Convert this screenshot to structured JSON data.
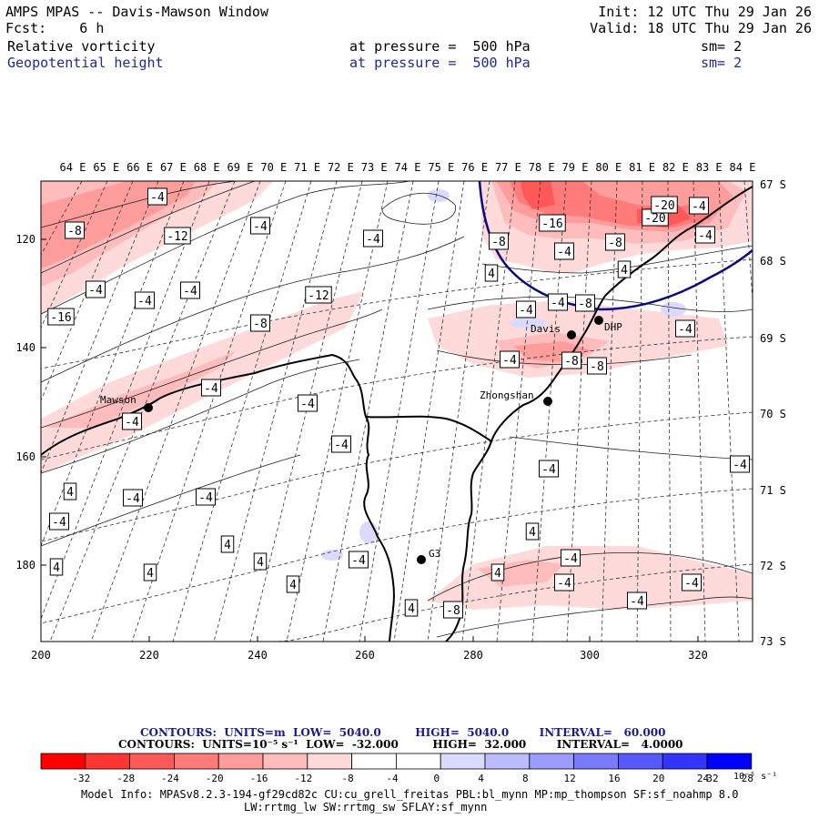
{
  "header": {
    "title": "AMPS MPAS -- Davis-Mawson Window",
    "init": "Init: 12 UTC Thu 29 Jan 26",
    "fcst": "Fcst:    6 h",
    "valid": "Valid: 18 UTC Thu 29 Jan 26",
    "field1": {
      "name": "Relative vorticity",
      "pressure": "at pressure =  500 hPa",
      "sm": "sm= 2"
    },
    "field2": {
      "name": "Geopotential height",
      "pressure": "at pressure =  500 hPa",
      "sm": "sm= 2"
    }
  },
  "axes": {
    "top_labels": [
      "64 E",
      "65 E",
      "66 E",
      "67 E",
      "68 E",
      "69 E",
      "70 E",
      "71 E",
      "72 E",
      "73 E",
      "74 E",
      "75 E",
      "76 E",
      "77 E",
      "78 E",
      "79 E",
      "80 E",
      "81 E",
      "82 E",
      "83 E",
      "84 E"
    ],
    "right_labels": [
      "67 S",
      "68 S",
      "69 S",
      "70 S",
      "71 S",
      "72 S",
      "73 S"
    ],
    "left_ticks": [
      "120",
      "140",
      "160",
      "180"
    ],
    "bottom_ticks": [
      "200",
      "220",
      "240",
      "260",
      "280",
      "300",
      "320"
    ]
  },
  "stations": [
    "Mawson",
    "Davis",
    "DHP",
    "Zhongshan",
    "G3"
  ],
  "contour_labels": [
    "-4",
    "-8",
    "-12",
    "-16",
    "-20",
    "-4",
    "-8",
    "-4",
    "-4",
    "-4",
    "-4",
    "-8",
    "-4",
    "-4",
    "-4",
    "-4",
    "-12",
    "-16",
    "-8",
    "-8",
    "-4",
    "-8",
    "-4",
    "-8",
    "-4",
    "-4",
    "-4",
    "-4",
    "-4",
    "4",
    "-4",
    "-4",
    "-4",
    "-4",
    "4",
    "4",
    "-4",
    "4",
    "-4",
    "4",
    "4",
    "4",
    "4",
    "4",
    "4",
    "-4",
    "-8",
    "-4",
    "-4",
    "4",
    "-4",
    "-20"
  ],
  "legend": {
    "line1": "CONTOURS:  UNITS=m  LOW=  5040.0         HIGH=  5040.0        INTERVAL=   60.000",
    "line2": "CONTOURS:  UNITS=10⁻⁵ s⁻¹  LOW=  -32.000         HIGH=  32.000        INTERVAL=   4.0000",
    "colors": [
      "#ff0000",
      "#ff3434",
      "#ff5858",
      "#ff7a7a",
      "#ff9c9c",
      "#ffbcbc",
      "#ffdada",
      "#ffffff",
      "#ffffff",
      "#dadaff",
      "#bcbcff",
      "#9c9cff",
      "#7a7aff",
      "#5858ff",
      "#3434ff",
      "#0000ff"
    ],
    "ticks": [
      "-32",
      "-28",
      "-24",
      "-20",
      "-16",
      "-12",
      "-8",
      "-4",
      "0",
      "4",
      "8",
      "12",
      "16",
      "20",
      "24",
      "28",
      "32"
    ],
    "units": "10⁻⁵ s⁻¹"
  },
  "model_info": {
    "line1": "Model Info: MPASv8.2.3-194-gf29cd82c CU:cu_grell_freitas PBL:bl_mynn MP:mp_thompson SF:sf_noahmp 8.0",
    "line2": "LW:rrtmg_lw SW:rrtmg_sw SFLAY:sf_mynn"
  }
}
